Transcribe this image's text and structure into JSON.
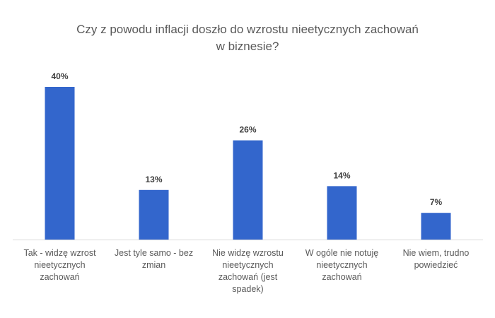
{
  "chart_data": {
    "type": "bar",
    "title": "Czy z powodu inflacji doszło do wzrostu nieetycznych zachowań w biznesie?",
    "title_lines": [
      "Czy z powodu inflacji doszło do wzrostu nieetycznych zachowań",
      "w biznesie?"
    ],
    "categories": [
      "Tak - widzę wzrost nieetycznych zachowań",
      "Jest tyle samo - bez zmian",
      "Nie widzę wzrostu nieetycznych zachowań (jest spadek)",
      "W ogóle nie notuję nieetycznych zachowań",
      "Nie wiem, trudno powiedzieć"
    ],
    "category_lines": [
      [
        "Tak - widzę wzrost",
        "nieetycznych",
        "zachowań"
      ],
      [
        "Jest tyle samo - bez",
        "zmian"
      ],
      [
        "Nie widzę wzrostu",
        "nieetycznych",
        "zachowań (jest",
        "spadek)"
      ],
      [
        "W ogóle nie notuję",
        "nieetycznych",
        "zachowań"
      ],
      [
        "Nie wiem, trudno",
        "powiedzieć"
      ]
    ],
    "values": [
      40,
      13,
      26,
      14,
      7
    ],
    "value_labels": [
      "40%",
      "13%",
      "26%",
      "14%",
      "7%"
    ],
    "unit": "%",
    "xlabel": "",
    "ylabel": "",
    "ylim": [
      0,
      40
    ],
    "grid": false,
    "legend": "none",
    "bar_color": "#3366cc",
    "axis_color": "#d9d9d9"
  }
}
